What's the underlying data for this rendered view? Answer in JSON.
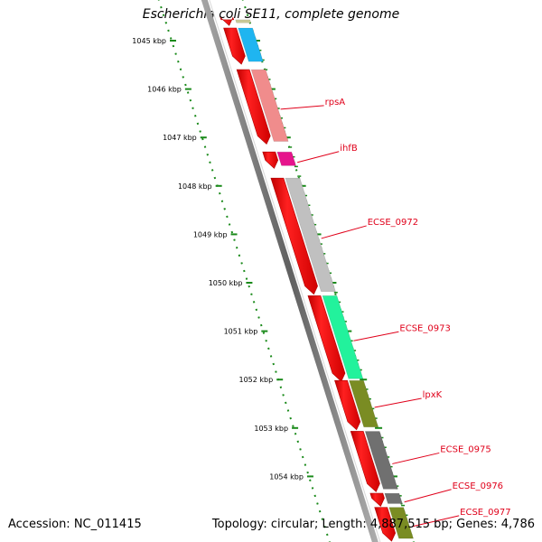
{
  "title": "Escherichia coli SE11, complete genome",
  "footer": {
    "accession": "Accession: NC_011415",
    "summary": "Topology: circular; Length: 4,887,515 bp; Genes: 4,786"
  },
  "ruler": {
    "color": "#1a8a1a",
    "ticks": [
      {
        "kbp": 1045,
        "label": "1045 kbp"
      },
      {
        "kbp": 1046,
        "label": "1046 kbp"
      },
      {
        "kbp": 1047,
        "label": "1047 kbp"
      },
      {
        "kbp": 1048,
        "label": "1048 kbp"
      },
      {
        "kbp": 1049,
        "label": "1049 kbp"
      },
      {
        "kbp": 1050,
        "label": "1050 kbp"
      },
      {
        "kbp": 1051,
        "label": "1051 kbp"
      },
      {
        "kbp": 1052,
        "label": "1052 kbp"
      },
      {
        "kbp": 1053,
        "label": "1053 kbp"
      },
      {
        "kbp": 1054,
        "label": "1054 kbp"
      }
    ]
  },
  "genes": [
    {
      "name": "",
      "start": 1044.55,
      "end": 1044.65,
      "color": "#c8c896",
      "cds": true
    },
    {
      "name": "",
      "start": 1044.72,
      "end": 1045.45,
      "color": "#1fb5f0",
      "cds": true
    },
    {
      "name": "rpsA",
      "start": 1045.58,
      "end": 1047.1,
      "color": "#f08c8c",
      "cds": true
    },
    {
      "name": "ihfB",
      "start": 1047.28,
      "end": 1047.6,
      "color": "#e6148c",
      "cds": true
    },
    {
      "name": "ECSE_0972",
      "start": 1047.82,
      "end": 1050.2,
      "color": "#c0c0c0",
      "cds": true
    },
    {
      "name": "ECSE_0973",
      "start": 1050.25,
      "end": 1052.0,
      "color": "#22f29c",
      "cds": true
    },
    {
      "name": "lpxK",
      "start": 1052.0,
      "end": 1053.0,
      "color": "#7a8c23",
      "cds": true
    },
    {
      "name": "ECSE_0975",
      "start": 1053.05,
      "end": 1054.28,
      "color": "#707070",
      "cds": true
    },
    {
      "name": "ECSE_0976",
      "start": 1054.33,
      "end": 1054.58,
      "color": "#707070",
      "cds": true
    },
    {
      "name": "ECSE_0977",
      "start": 1054.62,
      "end": 1055.3,
      "color": "#7a8c23",
      "cds": true
    }
  ],
  "colors": {
    "cds_red": "#ff0000",
    "label_red": "#e0001a",
    "backbone": "#8a8a8a"
  }
}
